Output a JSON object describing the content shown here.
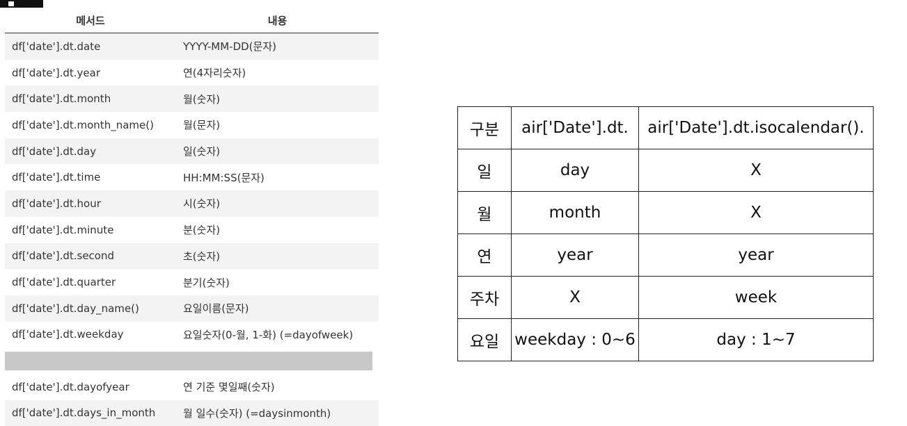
{
  "method_table": {
    "headers": [
      "메서드",
      "내용"
    ],
    "rows": [
      {
        "method": "df['date'].dt.date",
        "desc": "YYYY-MM-DD(문자)"
      },
      {
        "method": "df['date'].dt.year",
        "desc": "연(4자리숫자)"
      },
      {
        "method": "df['date'].dt.month",
        "desc": "월(숫자)"
      },
      {
        "method": "df['date'].dt.month_name()",
        "desc": "월(문자)"
      },
      {
        "method": "df['date'].dt.day",
        "desc": "일(숫자)"
      },
      {
        "method": "df['date'].dt.time",
        "desc": "HH:MM:SS(문자)"
      },
      {
        "method": "df['date'].dt.hour",
        "desc": "시(숫자)"
      },
      {
        "method": "df['date'].dt.minute",
        "desc": "분(숫자)"
      },
      {
        "method": "df['date'].dt.second",
        "desc": "초(숫자)"
      },
      {
        "method": "df['date'].dt.quarter",
        "desc": "분기(숫자)"
      },
      {
        "method": "df['date'].dt.day_name()",
        "desc": "요일이름(문자)"
      },
      {
        "method": "df['date'].dt.weekday",
        "desc": "요일숫자(0-월, 1-화) (=dayofweek)"
      },
      {
        "method": "df['date'].dt.dayofyear",
        "desc": "연 기준 몇일째(숫자)"
      },
      {
        "method": "df['date'].dt.days_in_month",
        "desc": "월 일수(숫자) (=daysinmonth)"
      }
    ]
  },
  "compare_table": {
    "header": [
      "구분",
      "air['Date'].dt.",
      "air['Date'].dt.isocalendar()."
    ],
    "rows": [
      [
        "일",
        "day",
        "X"
      ],
      [
        "월",
        "month",
        "X"
      ],
      [
        "연",
        "year",
        "year"
      ],
      [
        "주차",
        "X",
        "week"
      ],
      [
        "요일",
        "weekday : 0~6",
        "day : 1~7"
      ]
    ]
  },
  "colors": {
    "row_shade": "#f3f3f3",
    "gap_bar": "#c8c8c8",
    "border": "#222222"
  }
}
